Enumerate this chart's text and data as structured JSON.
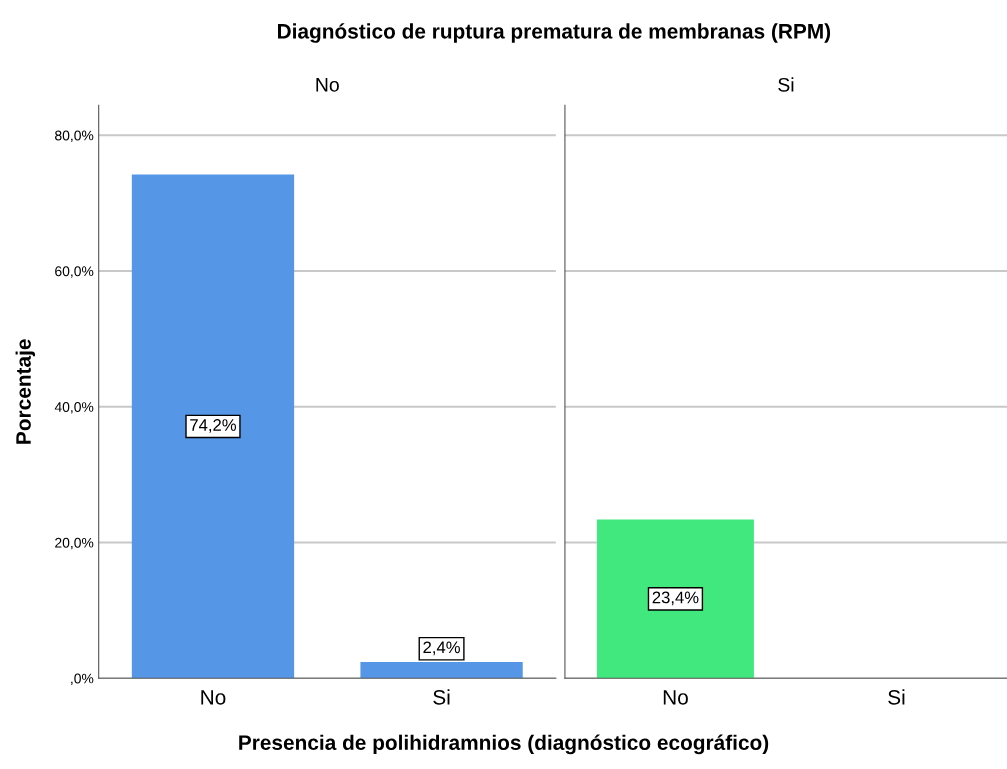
{
  "chart_data": [
    {
      "type": "bar",
      "title": "No",
      "annotations": [
        "Diagnóstico de ruptura prematura de membranas (RPM)"
      ],
      "xlabel": "Presencia de polihidramnios (diagnóstico ecográfico)",
      "ylabel": "Porcentaje",
      "categories": [
        "No",
        "Si"
      ],
      "values": [
        74.2,
        2.4
      ],
      "value_labels": [
        "74,2%",
        "2,4%"
      ],
      "color": "#5596e6",
      "ylim": [
        0,
        84.4
      ],
      "yticks": [
        {
          "value": 0,
          "label": ",0%"
        },
        {
          "value": 20,
          "label": "20,0%"
        },
        {
          "value": 40,
          "label": "40,0%"
        },
        {
          "value": 60,
          "label": "60,0%"
        },
        {
          "value": 80,
          "label": "80,0%"
        }
      ],
      "grid": "y"
    },
    {
      "type": "bar",
      "title": "Si",
      "categories": [
        "No",
        "Si"
      ],
      "values": [
        23.4,
        null
      ],
      "value_labels": [
        "23,4%",
        null
      ],
      "color": "#41e87d",
      "ylim": [
        0,
        84.4
      ],
      "yticks": [
        0,
        20,
        40,
        60,
        80
      ],
      "grid": "y",
      "tick_labels": "x"
    }
  ]
}
